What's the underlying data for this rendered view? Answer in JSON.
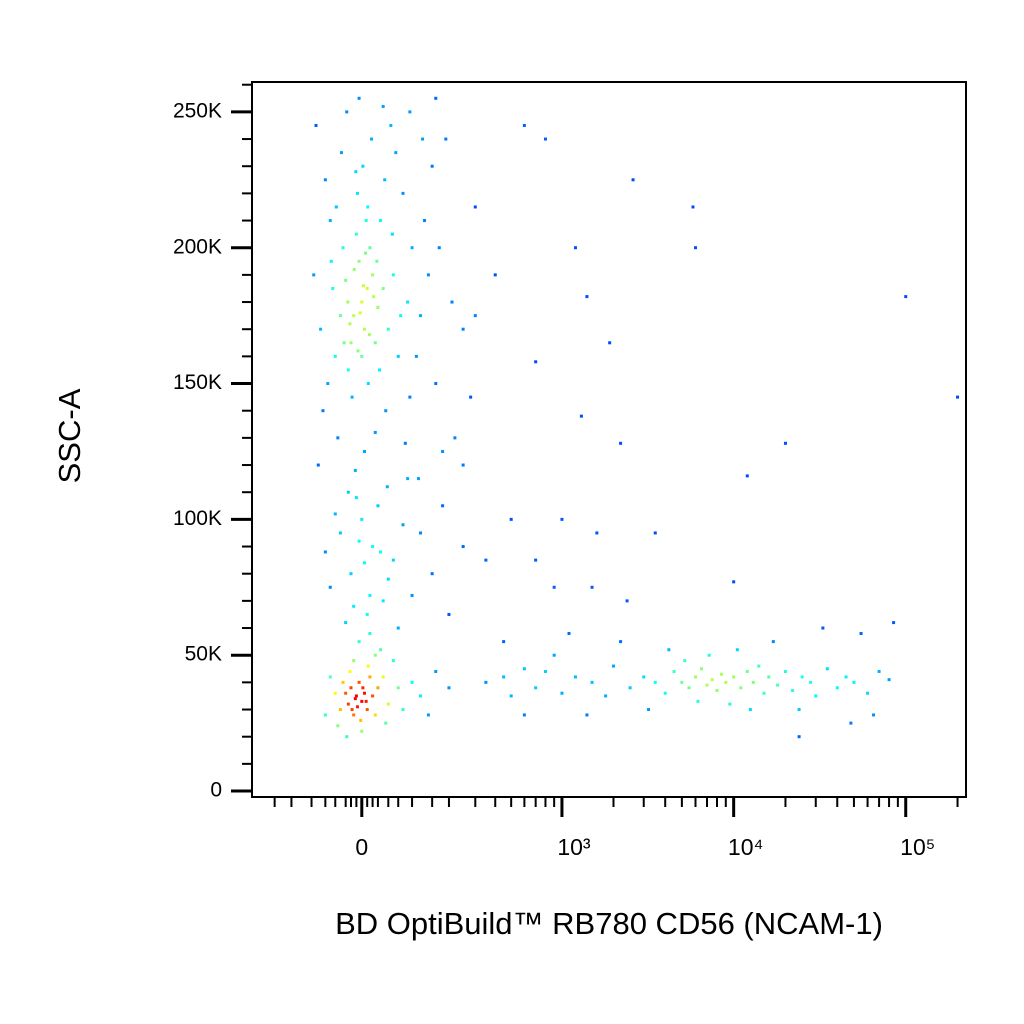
{
  "chart_data": {
    "type": "scatter",
    "xlabel": "BD OptiBuild™ RB780 CD56 (NCAM-1)",
    "ylabel": "SSC-A",
    "xscale": "biexponential",
    "density_coloring": true,
    "xlim": [
      -284,
      224000
    ],
    "ylim": [
      -2200,
      261000
    ],
    "xticks": [
      0,
      {
        "value": 1000,
        "label": "10³"
      },
      {
        "value": 10000,
        "label": "10⁴"
      },
      {
        "value": 100000,
        "label": "10⁵"
      }
    ],
    "xminorticks": [
      -200,
      -150,
      -100,
      -70,
      -50,
      -30,
      -20,
      -10,
      10,
      20,
      30,
      50,
      70,
      100,
      150,
      200,
      300,
      400,
      500,
      600,
      700,
      800,
      900,
      2000,
      3000,
      4000,
      5000,
      6000,
      7000,
      8000,
      9000,
      20000,
      30000,
      40000,
      50000,
      60000,
      70000,
      80000,
      90000,
      200000
    ],
    "yticks": [
      0,
      {
        "value": 50000,
        "label": "50K"
      },
      {
        "value": 100000,
        "label": "100K"
      },
      {
        "value": 150000,
        "label": "150K"
      },
      {
        "value": 200000,
        "label": "200K"
      },
      {
        "value": 250000,
        "label": "250K"
      }
    ],
    "yminorticks": [
      10000,
      20000,
      30000,
      40000,
      60000,
      70000,
      80000,
      90000,
      110000,
      120000,
      130000,
      140000,
      160000,
      170000,
      180000,
      190000,
      210000,
      220000,
      230000,
      240000,
      260000
    ],
    "x": [
      0,
      10,
      -15,
      20,
      -5,
      5,
      -20,
      15,
      30,
      -30,
      0,
      8,
      -10,
      25,
      -25,
      40,
      -40,
      12,
      -8,
      35,
      -35,
      50,
      -50,
      2,
      18,
      -18,
      45,
      -45,
      60,
      -60,
      70,
      -55,
      80,
      -65,
      90,
      5,
      -12,
      25,
      55,
      -28,
      65,
      -70,
      100,
      110,
      -75,
      120,
      130,
      95,
      140,
      -80,
      3,
      -3,
      14,
      -14,
      22,
      -22,
      7,
      -7,
      28,
      -26,
      33,
      -33,
      11,
      -11,
      43,
      -38,
      58,
      -48,
      75,
      -58,
      150,
      160,
      170,
      190,
      210,
      -90,
      85,
      -85,
      115,
      48,
      250,
      300,
      220,
      180,
      -95,
      160,
      40,
      -5,
      95,
      125,
      0,
      20,
      -20,
      40,
      -40,
      60,
      -60,
      10,
      -10,
      30,
      -30,
      80,
      -70,
      100,
      50,
      -50,
      5,
      -5,
      120,
      150,
      200,
      250,
      15,
      -15,
      70,
      180,
      350,
      -25,
      90,
      35,
      -10,
      0,
      -20,
      10,
      -5,
      -15,
      5,
      -25,
      15,
      -30,
      -8,
      2,
      -12,
      8,
      -18,
      20,
      -35,
      25,
      -2,
      -22,
      12,
      30,
      -40,
      40,
      -45,
      50,
      -50,
      60,
      70,
      -60,
      0,
      -28,
      35,
      80,
      100,
      120,
      -5,
      15,
      140,
      160,
      200,
      -70,
      45,
      -15,
      25,
      350,
      450,
      500,
      600,
      700,
      800,
      1000,
      1200,
      1500,
      1800,
      2000,
      2500,
      3000,
      3500,
      4000,
      4500,
      5000,
      5500,
      6000,
      6500,
      7000,
      7500,
      8000,
      8500,
      9000,
      10000,
      11000,
      12000,
      13000,
      14000,
      15000,
      16000,
      18000,
      20000,
      22000,
      25000,
      28000,
      30000,
      35000,
      40000,
      45000,
      50000,
      60000,
      70000,
      80000,
      5200,
      6200,
      7200,
      9500,
      10500,
      12500,
      4200,
      3200,
      2200,
      1400,
      900,
      17000,
      24000,
      55000,
      65000,
      85000,
      600,
      1100,
      33000,
      48000,
      600,
      800,
      1200,
      1400,
      2600,
      5800,
      6000,
      700,
      1300,
      1900,
      2200,
      20000,
      12000,
      100000,
      200000,
      400,
      300,
      500,
      1000,
      1600,
      3500,
      2400,
      900,
      10000,
      24000,
      450,
      700,
      1500,
      250,
      280
    ],
    "values": [
      180000,
      185000,
      175000,
      190000,
      195000,
      170000,
      165000,
      200000,
      178000,
      188000,
      160000,
      210000,
      205000,
      165000,
      155000,
      185000,
      175000,
      150000,
      220000,
      210000,
      200000,
      170000,
      160000,
      230000,
      240000,
      145000,
      140000,
      130000,
      190000,
      210000,
      160000,
      185000,
      220000,
      150000,
      180000,
      125000,
      118000,
      132000,
      245000,
      250000,
      235000,
      225000,
      200000,
      160000,
      140000,
      175000,
      210000,
      145000,
      190000,
      170000,
      186000,
      176000,
      168000,
      192000,
      182000,
      172000,
      198000,
      162000,
      195000,
      180000,
      155000,
      165000,
      215000,
      228000,
      225000,
      235000,
      205000,
      215000,
      175000,
      195000,
      230000,
      150000,
      200000,
      240000,
      180000,
      245000,
      128000,
      120000,
      115000,
      112000,
      170000,
      215000,
      130000,
      125000,
      190000,
      255000,
      252000,
      255000,
      250000,
      240000,
      100000,
      90000,
      80000,
      70000,
      95000,
      85000,
      75000,
      65000,
      108000,
      105000,
      62000,
      98000,
      88000,
      72000,
      78000,
      102000,
      84000,
      92000,
      95000,
      80000,
      65000,
      90000,
      72000,
      68000,
      60000,
      105000,
      85000,
      110000,
      115000,
      88000,
      35000,
      33000,
      38000,
      30000,
      40000,
      28000,
      36000,
      32000,
      42000,
      36000,
      31000,
      38000,
      34000,
      33000,
      30000,
      35000,
      40000,
      28000,
      26000,
      44000,
      46000,
      38000,
      30000,
      42000,
      24000,
      32000,
      36000,
      48000,
      38000,
      42000,
      22000,
      20000,
      52000,
      30000,
      40000,
      35000,
      55000,
      58000,
      28000,
      44000,
      38000,
      28000,
      25000,
      48000,
      50000,
      40000,
      42000,
      35000,
      45000,
      38000,
      44000,
      36000,
      42000,
      40000,
      35000,
      46000,
      38000,
      42000,
      40000,
      36000,
      44000,
      40000,
      38000,
      42000,
      45000,
      39000,
      41000,
      37000,
      43000,
      40000,
      42000,
      38000,
      44000,
      40000,
      46000,
      36000,
      42000,
      39000,
      44000,
      37000,
      42000,
      40000,
      35000,
      45000,
      38000,
      42000,
      40000,
      36000,
      44000,
      41000,
      48000,
      33000,
      50000,
      32000,
      52000,
      30000,
      52000,
      30000,
      55000,
      28000,
      50000,
      55000,
      30000,
      58000,
      28000,
      62000,
      28000,
      58000,
      60000,
      25000,
      245000,
      240000,
      200000,
      182000,
      225000,
      215000,
      200000,
      158000,
      138000,
      165000,
      128000,
      128000,
      116000,
      182000,
      145000,
      190000,
      175000,
      100000,
      100000,
      95000,
      95000,
      70000,
      75000,
      77000,
      20000,
      55000,
      85000,
      75000,
      120000,
      145000
    ]
  }
}
